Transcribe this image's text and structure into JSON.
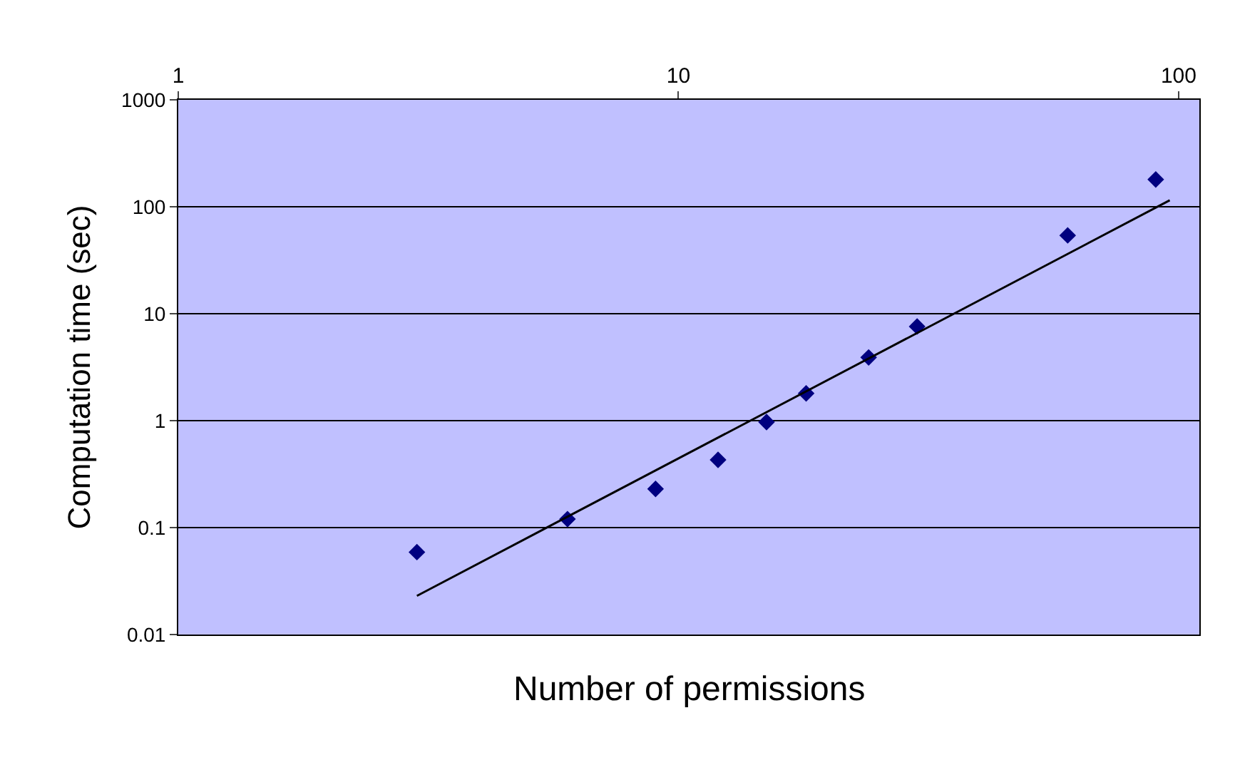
{
  "chart_data": {
    "type": "scatter",
    "xlabel": "Number of permissions",
    "ylabel": "Computation time (sec)",
    "x": [
      3,
      6,
      9,
      12,
      15,
      18,
      24,
      30,
      60,
      90
    ],
    "series": [
      {
        "color": "#000080",
        "marker": "diamond",
        "values": [
          0.059,
          0.12,
          0.23,
          0.43,
          0.97,
          1.8,
          3.9,
          7.6,
          54,
          180
        ]
      },
      {
        "type": "line",
        "color": "#000000",
        "marker": "none",
        "line_style": "solid",
        "x": [
          3,
          96
        ],
        "values": [
          0.023,
          115
        ]
      }
    ],
    "log": "xy",
    "xlim": [
      1,
      110
    ],
    "ylim": [
      0.01,
      1000
    ],
    "xticks": [
      1,
      10,
      100
    ],
    "yticks": [
      0.01,
      0.1,
      1,
      10,
      100,
      1000
    ],
    "grid": "y",
    "legend": false
  }
}
